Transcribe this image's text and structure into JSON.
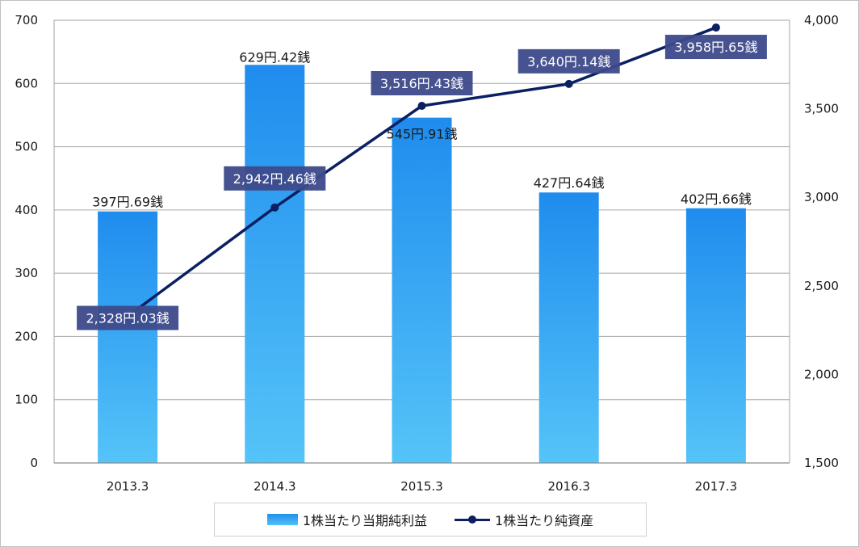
{
  "chart_data": {
    "type": "bar",
    "categories": [
      "2013.3",
      "2014.3",
      "2015.3",
      "2016.3",
      "2017.3"
    ],
    "series": [
      {
        "name": "1株当たり当期純利益",
        "type": "bar",
        "axis": "left",
        "values": [
          397.69,
          629.42,
          545.91,
          427.64,
          402.66
        ],
        "labels": [
          "397円.69銭",
          "629円.42銭",
          "545円.91銭",
          "427円.64銭",
          "402円.66銭"
        ],
        "color": "#2090ee"
      },
      {
        "name": "1株当たり純資産",
        "type": "line",
        "axis": "right",
        "values": [
          2328.03,
          2942.46,
          3516.43,
          3640.14,
          3958.65
        ],
        "labels": [
          "2,328円.03銭",
          "2,942円.46銭",
          "3,516円.43銭",
          "3,640円.14銭",
          "3,958円.65銭"
        ],
        "color": "#0b1f63"
      }
    ],
    "y_left": {
      "lim": [
        0,
        700
      ],
      "ticks": [
        0,
        100,
        200,
        300,
        400,
        500,
        600,
        700
      ],
      "tick_labels": [
        "0",
        "100",
        "200",
        "300",
        "400",
        "500",
        "600",
        "700"
      ]
    },
    "y_right": {
      "lim": [
        1500,
        4000
      ],
      "ticks": [
        1500,
        2000,
        2500,
        3000,
        3500,
        4000
      ],
      "tick_labels": [
        "1,500",
        "2,000",
        "2,500",
        "3,000",
        "3,500",
        "4,000"
      ]
    },
    "grid": true,
    "legend_position": "bottom",
    "label_box_color": "#3d4a8a"
  }
}
